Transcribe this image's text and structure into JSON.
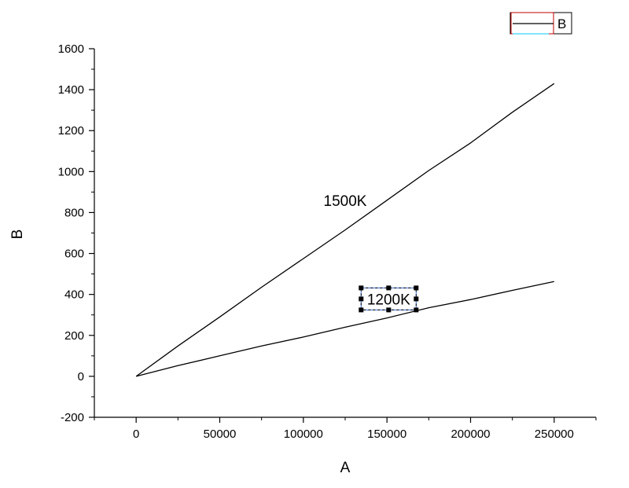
{
  "chart_data": {
    "type": "line",
    "xlabel": "A",
    "ylabel": "B",
    "xlim": [
      -25000,
      275000
    ],
    "ylim": [
      -200,
      1600
    ],
    "x_ticks": [
      0,
      50000,
      100000,
      150000,
      200000,
      250000
    ],
    "x_tick_labels": [
      "0",
      "50000",
      "100000",
      "150000",
      "200000",
      "250000"
    ],
    "y_ticks": [
      -200,
      0,
      200,
      400,
      600,
      800,
      1000,
      1200,
      1400,
      1600
    ],
    "y_tick_labels": [
      "-200",
      "0",
      "200",
      "400",
      "600",
      "800",
      "1000",
      "1200",
      "1400",
      "1600"
    ],
    "grid": false,
    "legend": {
      "position": "top-right",
      "entries": [
        "B"
      ]
    },
    "series": [
      {
        "color": "#000000",
        "x": [
          0,
          25000,
          50000,
          75000,
          100000,
          125000,
          150000,
          175000,
          200000,
          225000,
          250000
        ],
        "y": [
          0,
          148,
          290,
          435,
          575,
          715,
          860,
          1005,
          1140,
          1290,
          1430
        ]
      },
      {
        "color": "#000000",
        "x": [
          0,
          25000,
          50000,
          75000,
          100000,
          125000,
          150000,
          175000,
          200000,
          225000,
          250000
        ],
        "y": [
          0,
          52,
          100,
          148,
          192,
          240,
          285,
          335,
          375,
          420,
          463
        ]
      }
    ],
    "annotations": [
      {
        "text": "1500K",
        "x": 125000,
        "y": 860,
        "selected": false
      },
      {
        "text": "1200K",
        "x": 151000,
        "y": 378,
        "selected": true
      }
    ]
  }
}
